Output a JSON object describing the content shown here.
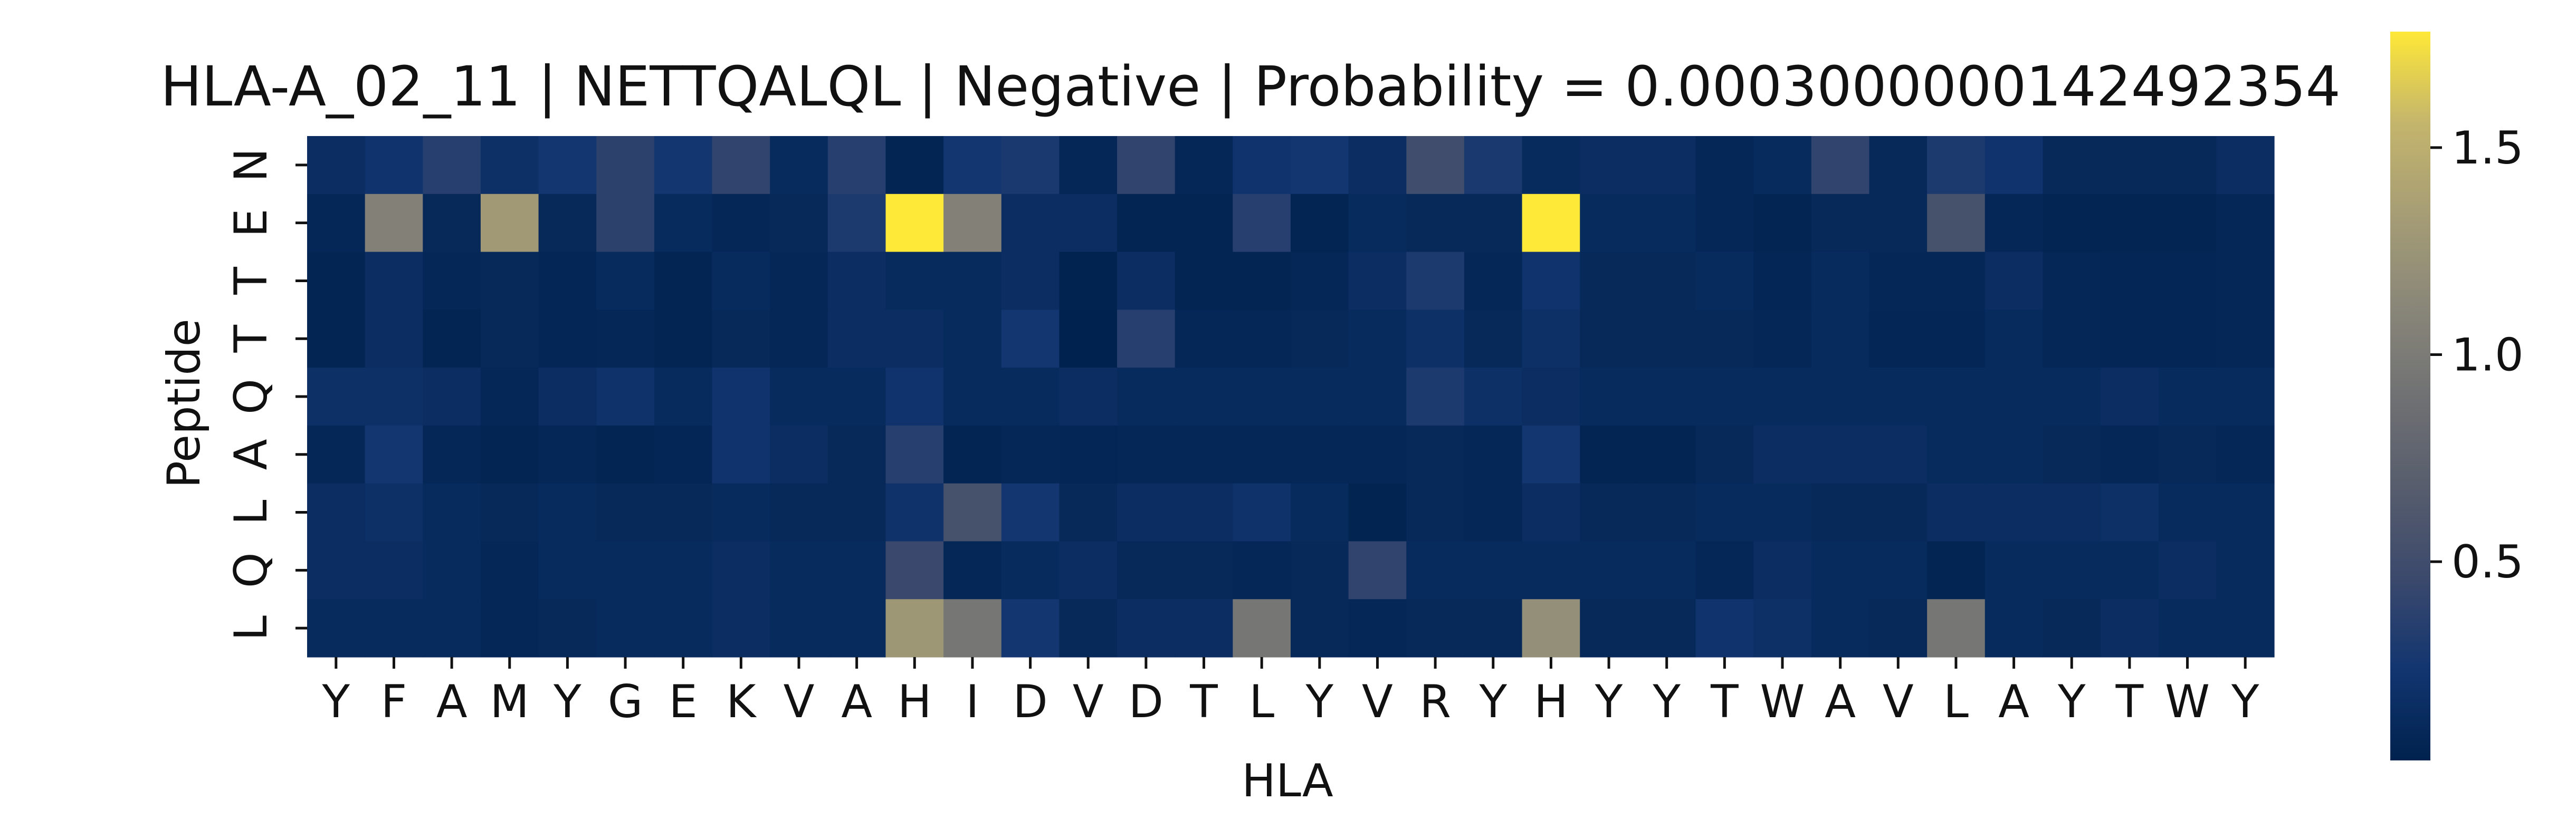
{
  "chart_data": {
    "type": "heatmap",
    "title": "HLA-A_02_11 | NETTQALQL | Negative | Probability = 0.0003000000142492354",
    "xlabel": "HLA",
    "ylabel": "Peptide",
    "x_categories": [
      "Y",
      "F",
      "A",
      "M",
      "Y",
      "G",
      "E",
      "K",
      "V",
      "A",
      "H",
      "I",
      "D",
      "V",
      "D",
      "T",
      "L",
      "Y",
      "V",
      "R",
      "Y",
      "H",
      "Y",
      "Y",
      "T",
      "W",
      "A",
      "V",
      "L",
      "A",
      "Y",
      "T",
      "W",
      "Y"
    ],
    "y_categories": [
      "N",
      "E",
      "T",
      "T",
      "Q",
      "A",
      "L",
      "Q",
      "L"
    ],
    "colorbar": {
      "colormap": "cividis",
      "range": [
        0.02,
        1.78
      ],
      "ticks": [
        0.5,
        1.0,
        1.5
      ],
      "tick_labels": [
        "0.5",
        "1.0",
        "1.5"
      ]
    },
    "values": [
      [
        0.15,
        0.22,
        0.35,
        0.18,
        0.25,
        0.38,
        0.25,
        0.4,
        0.12,
        0.35,
        0.05,
        0.25,
        0.28,
        0.08,
        0.4,
        0.08,
        0.22,
        0.25,
        0.15,
        0.5,
        0.28,
        0.12,
        0.15,
        0.15,
        0.08,
        0.12,
        0.4,
        0.1,
        0.3,
        0.22,
        0.1,
        0.1,
        0.1,
        0.15
      ],
      [
        0.08,
        1.05,
        0.1,
        1.3,
        0.1,
        0.38,
        0.12,
        0.08,
        0.1,
        0.3,
        1.78,
        1.05,
        0.15,
        0.15,
        0.06,
        0.06,
        0.35,
        0.06,
        0.12,
        0.1,
        0.1,
        1.78,
        0.12,
        0.12,
        0.08,
        0.05,
        0.1,
        0.1,
        0.55,
        0.08,
        0.06,
        0.06,
        0.06,
        0.08
      ],
      [
        0.05,
        0.15,
        0.08,
        0.1,
        0.07,
        0.12,
        0.06,
        0.12,
        0.08,
        0.15,
        0.12,
        0.12,
        0.15,
        0.03,
        0.15,
        0.06,
        0.05,
        0.08,
        0.15,
        0.3,
        0.08,
        0.22,
        0.1,
        0.1,
        0.12,
        0.07,
        0.12,
        0.08,
        0.08,
        0.15,
        0.08,
        0.07,
        0.07,
        0.08
      ],
      [
        0.05,
        0.15,
        0.06,
        0.1,
        0.07,
        0.08,
        0.06,
        0.1,
        0.08,
        0.15,
        0.15,
        0.12,
        0.25,
        0.02,
        0.35,
        0.08,
        0.08,
        0.1,
        0.12,
        0.18,
        0.1,
        0.18,
        0.1,
        0.1,
        0.1,
        0.08,
        0.12,
        0.07,
        0.07,
        0.12,
        0.08,
        0.07,
        0.07,
        0.08
      ],
      [
        0.18,
        0.18,
        0.15,
        0.08,
        0.15,
        0.2,
        0.12,
        0.22,
        0.12,
        0.12,
        0.22,
        0.12,
        0.12,
        0.15,
        0.12,
        0.12,
        0.12,
        0.12,
        0.12,
        0.3,
        0.18,
        0.15,
        0.12,
        0.12,
        0.12,
        0.12,
        0.12,
        0.12,
        0.12,
        0.12,
        0.12,
        0.15,
        0.12,
        0.12
      ],
      [
        0.08,
        0.25,
        0.08,
        0.06,
        0.08,
        0.05,
        0.07,
        0.22,
        0.15,
        0.1,
        0.35,
        0.06,
        0.08,
        0.07,
        0.08,
        0.08,
        0.08,
        0.08,
        0.08,
        0.1,
        0.08,
        0.25,
        0.06,
        0.06,
        0.1,
        0.15,
        0.15,
        0.15,
        0.12,
        0.12,
        0.1,
        0.08,
        0.1,
        0.08
      ],
      [
        0.15,
        0.18,
        0.12,
        0.1,
        0.12,
        0.1,
        0.1,
        0.12,
        0.1,
        0.1,
        0.2,
        0.55,
        0.25,
        0.1,
        0.15,
        0.15,
        0.2,
        0.12,
        0.04,
        0.1,
        0.08,
        0.15,
        0.1,
        0.1,
        0.12,
        0.12,
        0.1,
        0.1,
        0.15,
        0.15,
        0.15,
        0.18,
        0.12,
        0.12
      ],
      [
        0.15,
        0.15,
        0.12,
        0.08,
        0.12,
        0.12,
        0.12,
        0.15,
        0.12,
        0.12,
        0.45,
        0.08,
        0.12,
        0.15,
        0.1,
        0.1,
        0.08,
        0.1,
        0.4,
        0.12,
        0.12,
        0.12,
        0.12,
        0.12,
        0.08,
        0.15,
        0.12,
        0.12,
        0.06,
        0.12,
        0.12,
        0.12,
        0.15,
        0.12
      ],
      [
        0.12,
        0.12,
        0.12,
        0.08,
        0.1,
        0.12,
        0.12,
        0.15,
        0.12,
        0.12,
        1.28,
        0.95,
        0.25,
        0.1,
        0.15,
        0.15,
        0.95,
        0.1,
        0.08,
        0.1,
        0.1,
        1.2,
        0.1,
        0.1,
        0.22,
        0.18,
        0.12,
        0.1,
        0.95,
        0.12,
        0.1,
        0.15,
        0.12,
        0.12
      ]
    ]
  }
}
